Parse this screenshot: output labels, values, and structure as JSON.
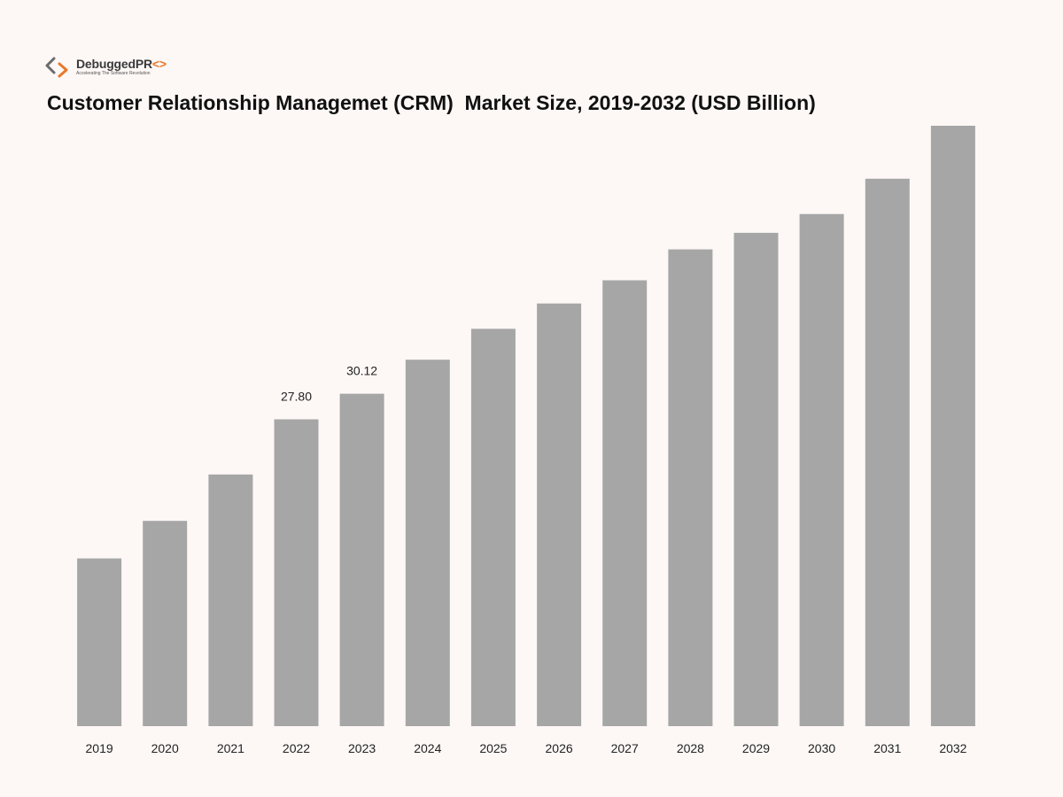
{
  "brand": {
    "name_main": "DebuggedPR",
    "name_accent": "<>",
    "tagline": "Accelerating The Software Revolution",
    "accent_color": "#e8782b",
    "text_color": "#3a3a3a",
    "icon": "code-chevrons-icon"
  },
  "chart_data": {
    "type": "bar",
    "title": "Customer Relationship Managemet (CRM)  Market Size, 2019-2032 (USD Billion)",
    "xlabel": "",
    "ylabel": "",
    "categories": [
      "2019",
      "2020",
      "2021",
      "2022",
      "2023",
      "2024",
      "2025",
      "2026",
      "2027",
      "2028",
      "2029",
      "2030",
      "2031",
      "2032"
    ],
    "values": [
      15.2,
      18.6,
      22.8,
      27.8,
      30.12,
      33.2,
      36.0,
      38.3,
      40.4,
      43.2,
      44.7,
      46.4,
      49.6,
      54.4
    ],
    "data_labels": [
      "",
      "",
      "",
      "27.80",
      "30.12",
      "",
      "",
      "",
      "",
      "",
      "",
      "",
      "",
      ""
    ],
    "ylim": [
      0,
      54.4
    ],
    "bar_color": "#a6a6a6",
    "grid": false,
    "legend": "none"
  }
}
